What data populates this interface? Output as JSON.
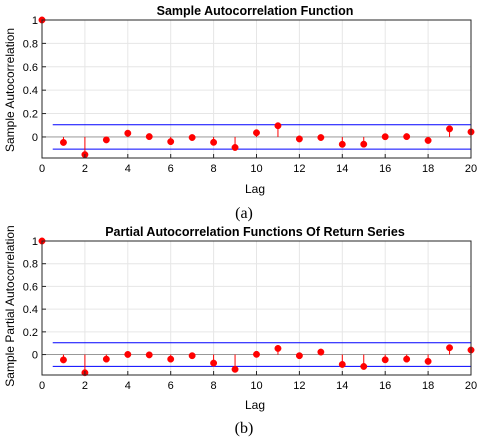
{
  "chart_data": [
    {
      "type": "stem",
      "title": "Sample Autocorrelation Function",
      "xlabel": "Lag",
      "ylabel": "Sample Autocorrelation",
      "caption": "(a)",
      "xlim": [
        0,
        20
      ],
      "ylim": [
        -0.18,
        1.0
      ],
      "x_ticks": [
        0,
        2,
        4,
        6,
        8,
        10,
        12,
        14,
        16,
        18,
        20
      ],
      "y_ticks": [
        0,
        0.2,
        0.4,
        0.6,
        0.8,
        1
      ],
      "y_tick_labels": [
        "0",
        "0.2",
        "0.4",
        "0.6",
        "0.8",
        "1"
      ],
      "grid": true,
      "bounds": [
        0.104,
        -0.104
      ],
      "bounds_x_range": [
        0.5,
        20
      ],
      "x": [
        0,
        1,
        2,
        3,
        4,
        5,
        6,
        7,
        8,
        9,
        10,
        11,
        12,
        13,
        14,
        15,
        16,
        17,
        18,
        19,
        20
      ],
      "values": [
        1.0,
        -0.047,
        -0.151,
        -0.025,
        0.032,
        0.003,
        -0.04,
        -0.005,
        -0.046,
        -0.09,
        0.036,
        0.096,
        -0.017,
        -0.005,
        -0.063,
        -0.062,
        0.002,
        0.003,
        -0.03,
        0.069,
        0.043
      ],
      "colors": {
        "stem": "#ff0000",
        "marker": "#ff0000",
        "bounds": "#0000ff",
        "grid": "#e6e6e6",
        "axes": "#262626"
      }
    },
    {
      "type": "stem",
      "title": "Partial Autocorrelation Functions Of Return Series",
      "xlabel": "Lag",
      "ylabel": "Sample Partial Autocorrelation",
      "caption": "(b)",
      "xlim": [
        0,
        20
      ],
      "ylim": [
        -0.18,
        1.0
      ],
      "x_ticks": [
        0,
        2,
        4,
        6,
        8,
        10,
        12,
        14,
        16,
        18,
        20
      ],
      "y_ticks": [
        0,
        0.2,
        0.4,
        0.6,
        0.8,
        1
      ],
      "y_tick_labels": [
        "0",
        "0.2",
        "0.4",
        "0.6",
        "0.8",
        "1"
      ],
      "grid": true,
      "bounds": [
        0.104,
        -0.104
      ],
      "bounds_x_range": [
        0.5,
        20
      ],
      "x": [
        0,
        1,
        2,
        3,
        4,
        5,
        6,
        7,
        8,
        9,
        10,
        11,
        12,
        13,
        14,
        15,
        16,
        17,
        18,
        19,
        20
      ],
      "values": [
        1.0,
        -0.047,
        -0.16,
        -0.04,
        0.001,
        -0.003,
        -0.04,
        -0.01,
        -0.075,
        -0.13,
        0.002,
        0.054,
        -0.01,
        0.022,
        -0.087,
        -0.105,
        -0.046,
        -0.04,
        -0.06,
        0.06,
        0.04
      ],
      "colors": {
        "stem": "#ff0000",
        "marker": "#ff0000",
        "bounds": "#0000ff",
        "grid": "#e6e6e6",
        "axes": "#262626"
      }
    }
  ]
}
